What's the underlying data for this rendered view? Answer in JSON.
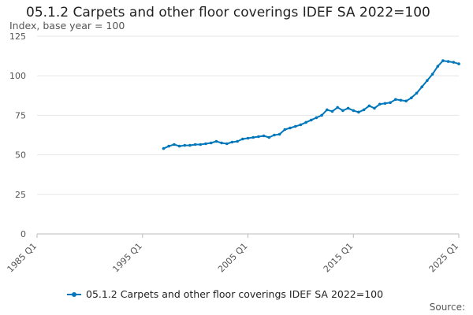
{
  "chart_data": {
    "type": "line",
    "title": "05.1.2 Carpets and other floor coverings IDEF SA 2022=100",
    "subtitle": "Index, base year = 100",
    "xlabel": "",
    "ylabel": "",
    "ylim": [
      0,
      125
    ],
    "yticks": [
      "0",
      "25",
      "50",
      "75",
      "100",
      "125"
    ],
    "xticks": [
      "1985 Q1",
      "1995 Q1",
      "2005 Q1",
      "2015 Q1",
      "2025 Q1"
    ],
    "xrange": [
      "1985 Q1",
      "2025 Q1"
    ],
    "grid": "horizontal",
    "legend_position": "bottom",
    "source_label": "Source:",
    "series": [
      {
        "name": "05.1.2 Carpets and other floor coverings IDEF SA 2022=100",
        "color": "#0077bb",
        "points": [
          [
            "1997 Q1",
            54.0
          ],
          [
            "1997 Q3",
            55.5
          ],
          [
            "1998 Q1",
            56.5
          ],
          [
            "1998 Q3",
            55.5
          ],
          [
            "1999 Q1",
            56.0
          ],
          [
            "1999 Q3",
            56.0
          ],
          [
            "2000 Q1",
            56.5
          ],
          [
            "2000 Q3",
            56.5
          ],
          [
            "2001 Q1",
            57.0
          ],
          [
            "2001 Q3",
            57.5
          ],
          [
            "2002 Q1",
            58.5
          ],
          [
            "2002 Q3",
            57.5
          ],
          [
            "2003 Q1",
            57.0
          ],
          [
            "2003 Q3",
            58.0
          ],
          [
            "2004 Q1",
            58.5
          ],
          [
            "2004 Q3",
            60.0
          ],
          [
            "2005 Q1",
            60.5
          ],
          [
            "2005 Q3",
            61.0
          ],
          [
            "2006 Q1",
            61.5
          ],
          [
            "2006 Q3",
            62.0
          ],
          [
            "2007 Q1",
            61.0
          ],
          [
            "2007 Q3",
            62.5
          ],
          [
            "2008 Q1",
            63.0
          ],
          [
            "2008 Q3",
            66.0
          ],
          [
            "2009 Q1",
            67.0
          ],
          [
            "2009 Q3",
            68.0
          ],
          [
            "2010 Q1",
            69.0
          ],
          [
            "2010 Q3",
            70.5
          ],
          [
            "2011 Q1",
            72.0
          ],
          [
            "2011 Q3",
            73.5
          ],
          [
            "2012 Q1",
            75.0
          ],
          [
            "2012 Q3",
            78.5
          ],
          [
            "2013 Q1",
            77.5
          ],
          [
            "2013 Q3",
            80.0
          ],
          [
            "2014 Q1",
            78.0
          ],
          [
            "2014 Q3",
            79.5
          ],
          [
            "2015 Q1",
            78.0
          ],
          [
            "2015 Q3",
            77.0
          ],
          [
            "2016 Q1",
            78.5
          ],
          [
            "2016 Q3",
            81.0
          ],
          [
            "2017 Q1",
            79.5
          ],
          [
            "2017 Q3",
            82.0
          ],
          [
            "2018 Q1",
            82.5
          ],
          [
            "2018 Q3",
            83.0
          ],
          [
            "2019 Q1",
            85.0
          ],
          [
            "2019 Q3",
            84.5
          ],
          [
            "2020 Q1",
            84.0
          ],
          [
            "2020 Q3",
            86.0
          ],
          [
            "2021 Q1",
            89.0
          ],
          [
            "2021 Q3",
            93.0
          ],
          [
            "2022 Q1",
            97.0
          ],
          [
            "2022 Q3",
            101.0
          ],
          [
            "2023 Q1",
            106.0
          ],
          [
            "2023 Q3",
            109.5
          ],
          [
            "2024 Q1",
            109.0
          ],
          [
            "2024 Q3",
            108.5
          ],
          [
            "2025 Q1",
            107.5
          ]
        ]
      }
    ]
  }
}
